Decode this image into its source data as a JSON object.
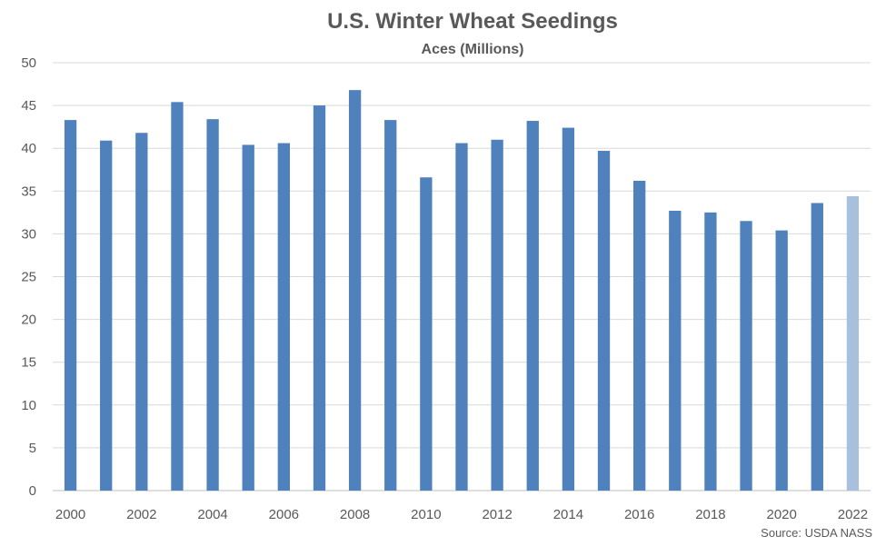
{
  "chart_data": {
    "type": "bar",
    "title": "U.S. Winter Wheat Seedings",
    "subtitle": "Aces (Millions)",
    "xlabel": "",
    "ylabel": "",
    "ylim": [
      0,
      50
    ],
    "yticks": [
      "0",
      "5",
      "10",
      "15",
      "20",
      "25",
      "30",
      "35",
      "40",
      "45",
      "50"
    ],
    "grid": true,
    "categories": [
      "2000",
      "2001",
      "2002",
      "2003",
      "2004",
      "2005",
      "2006",
      "2007",
      "2008",
      "2009",
      "2010",
      "2011",
      "2012",
      "2013",
      "2014",
      "2015",
      "2016",
      "2017",
      "2018",
      "2019",
      "2020",
      "2021",
      "2022"
    ],
    "xtick_labels": [
      "2000",
      "",
      "2002",
      "",
      "2004",
      "",
      "2006",
      "",
      "2008",
      "",
      "2010",
      "",
      "2012",
      "",
      "2014",
      "",
      "2016",
      "",
      "2018",
      "",
      "2020",
      "",
      "2022"
    ],
    "values": [
      43.3,
      40.9,
      41.8,
      45.4,
      43.4,
      40.4,
      40.6,
      45.0,
      46.8,
      43.3,
      36.6,
      40.6,
      41.0,
      43.2,
      42.4,
      39.7,
      36.2,
      32.7,
      32.5,
      31.5,
      30.4,
      33.6,
      34.4
    ],
    "colors": {
      "default": "#4f81bd",
      "highlight": "#a7c0de"
    },
    "highlight_categories": [
      "2022"
    ],
    "source": "Source: USDA NASS"
  }
}
